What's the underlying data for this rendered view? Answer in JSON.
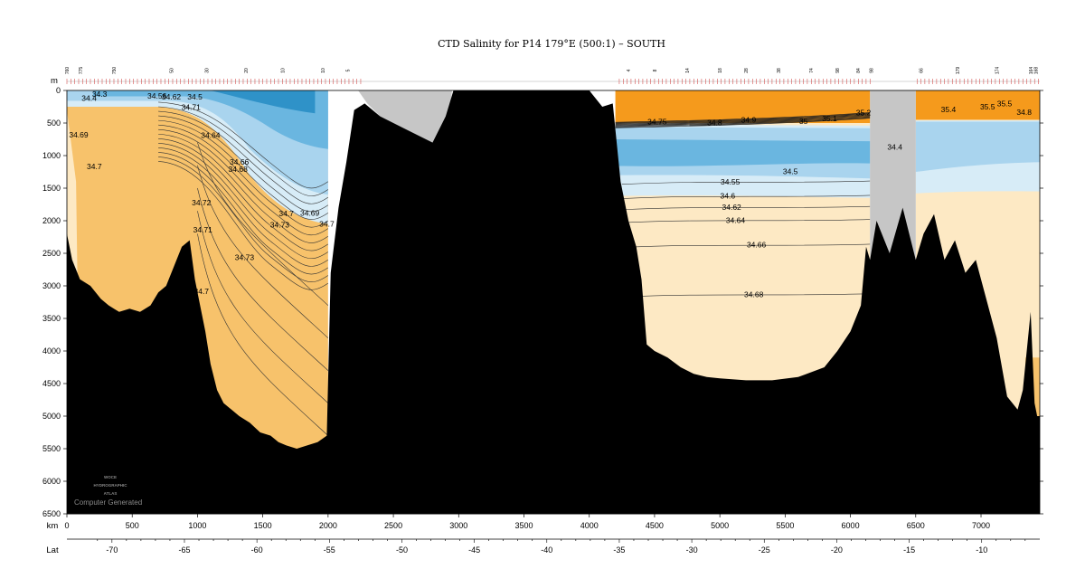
{
  "chart_data": {
    "type": "section-contour",
    "title": "CTD Salinity for P14 179°E (500:1) – SOUTH",
    "y_axis": {
      "label": "m",
      "lim": [
        0,
        6500
      ],
      "ticks": [
        "0",
        "500",
        "1000",
        "1500",
        "2000",
        "2500",
        "3000",
        "3500",
        "4000",
        "4500",
        "5000",
        "5500",
        "6000",
        "6500"
      ]
    },
    "x_axis_km": {
      "label": "km",
      "lim": [
        0,
        7450
      ],
      "ticks": [
        "0",
        "500",
        "1000",
        "1500",
        "2000",
        "2500",
        "3000",
        "3500",
        "4000",
        "4500",
        "5000",
        "5500",
        "6000",
        "6500",
        "7000"
      ]
    },
    "x_axis_lat": {
      "label": "Lat",
      "ticks": [
        {
          "lat": -70,
          "text": "-70"
        },
        {
          "lat": -65,
          "text": "-65"
        },
        {
          "lat": -60,
          "text": "-60"
        },
        {
          "lat": -55,
          "text": "-55"
        },
        {
          "lat": -50,
          "text": "-50"
        },
        {
          "lat": -45,
          "text": "-45"
        },
        {
          "lat": -40,
          "text": "-40"
        },
        {
          "lat": -35,
          "text": "-35"
        },
        {
          "lat": -30,
          "text": "-30"
        },
        {
          "lat": -25,
          "text": "-25"
        },
        {
          "lat": -20,
          "text": "-20"
        },
        {
          "lat": -15,
          "text": "-15"
        },
        {
          "lat": -10,
          "text": "-10"
        }
      ]
    },
    "station_labels": [
      {
        "km": 0,
        "text": "760"
      },
      {
        "km": 105,
        "text": "775"
      },
      {
        "km": 360,
        "text": "750"
      },
      {
        "km": 800,
        "text": "50"
      },
      {
        "km": 1070,
        "text": "30"
      },
      {
        "km": 1370,
        "text": "20"
      },
      {
        "km": 1650,
        "text": "10"
      },
      {
        "km": 1960,
        "text": "10"
      },
      {
        "km": 2150,
        "text": "5"
      },
      {
        "km": 4300,
        "text": "4"
      },
      {
        "km": 4500,
        "text": "8"
      },
      {
        "km": 4750,
        "text": "14"
      },
      {
        "km": 5000,
        "text": "18"
      },
      {
        "km": 5200,
        "text": "28"
      },
      {
        "km": 5450,
        "text": "38"
      },
      {
        "km": 5700,
        "text": "74"
      },
      {
        "km": 5900,
        "text": "98"
      },
      {
        "km": 6060,
        "text": "84"
      },
      {
        "km": 6160,
        "text": "98"
      },
      {
        "km": 6540,
        "text": "66"
      },
      {
        "km": 6820,
        "text": "179"
      },
      {
        "km": 7120,
        "text": "174"
      },
      {
        "km": 7380,
        "text": "164"
      },
      {
        "km": 7420,
        "text": "168"
      }
    ],
    "contour_labels": [
      {
        "km": 250,
        "depth": 55,
        "text": "34.3"
      },
      {
        "km": 170,
        "depth": 115,
        "text": "34.4"
      },
      {
        "km": 690,
        "depth": 80,
        "text": "34.56"
      },
      {
        "km": 800,
        "depth": 95,
        "text": "34.62"
      },
      {
        "km": 980,
        "depth": 95,
        "text": "34.5"
      },
      {
        "km": 950,
        "depth": 255,
        "text": "34.71"
      },
      {
        "km": 90,
        "depth": 680,
        "text": "34.69"
      },
      {
        "km": 210,
        "depth": 1170,
        "text": "34.7"
      },
      {
        "km": 1100,
        "depth": 690,
        "text": "34.64"
      },
      {
        "km": 1320,
        "depth": 1100,
        "text": "34.66"
      },
      {
        "km": 1310,
        "depth": 1210,
        "text": "34.68"
      },
      {
        "km": 1030,
        "depth": 1720,
        "text": "34.72"
      },
      {
        "km": 1680,
        "depth": 1890,
        "text": "34.7"
      },
      {
        "km": 1860,
        "depth": 1880,
        "text": "34.69"
      },
      {
        "km": 1630,
        "depth": 2060,
        "text": "34.73"
      },
      {
        "km": 1990,
        "depth": 2050,
        "text": "34.7"
      },
      {
        "km": 1040,
        "depth": 2140,
        "text": "34.71"
      },
      {
        "km": 1360,
        "depth": 2560,
        "text": "34.73"
      },
      {
        "km": 1030,
        "depth": 3080,
        "text": "34.7"
      },
      {
        "km": 4520,
        "depth": 480,
        "text": "34.75"
      },
      {
        "km": 4960,
        "depth": 490,
        "text": "34.8"
      },
      {
        "km": 5220,
        "depth": 450,
        "text": "34.9"
      },
      {
        "km": 5640,
        "depth": 470,
        "text": "35"
      },
      {
        "km": 5840,
        "depth": 430,
        "text": "35.1"
      },
      {
        "km": 6100,
        "depth": 340,
        "text": "35.2"
      },
      {
        "km": 6340,
        "depth": 870,
        "text": "34.4"
      },
      {
        "km": 5540,
        "depth": 1240,
        "text": "34.5"
      },
      {
        "km": 5080,
        "depth": 1400,
        "text": "34.55"
      },
      {
        "km": 5060,
        "depth": 1620,
        "text": "34.6"
      },
      {
        "km": 5090,
        "depth": 1790,
        "text": "34.62"
      },
      {
        "km": 5120,
        "depth": 1990,
        "text": "34.64"
      },
      {
        "km": 5280,
        "depth": 2370,
        "text": "34.66"
      },
      {
        "km": 5260,
        "depth": 3130,
        "text": "34.68"
      },
      {
        "km": 6750,
        "depth": 290,
        "text": "35.4"
      },
      {
        "km": 7050,
        "depth": 250,
        "text": "35.5"
      },
      {
        "km": 7330,
        "depth": 330,
        "text": "34.8"
      },
      {
        "km": 7180,
        "depth": 200,
        "text": "35.5"
      }
    ],
    "colors": {
      "salt_high": "#f59a1c",
      "salt_mid": "#f7c26b",
      "salt_lowmid": "#fbd79a",
      "salt_low": "#fde9c4",
      "fresh_1": "#d7ecf7",
      "fresh_2": "#a9d4ee",
      "fresh_3": "#6ab6e0",
      "fresh_4": "#2f92c8",
      "land": "#000000",
      "no_data": "#c6c6c6"
    }
  },
  "watermark": {
    "line1": "WOCE",
    "line2": "HYDROGRAPHIC",
    "line3": "ATLAS",
    "caption": "Computer Generated"
  }
}
